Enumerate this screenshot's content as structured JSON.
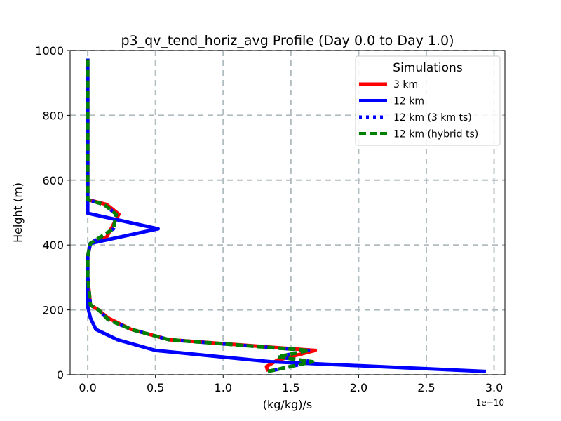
{
  "chart_data": {
    "type": "line",
    "title": "p3_qv_tend_horiz_avg Profile (Day 0.0 to Day 1.0)",
    "xlabel": "(kg/kg)/s",
    "ylabel": "Height (m)",
    "x_offset_text": "1e−10",
    "x_scale": 1e-10,
    "xlim": [
      -0.13,
      3.08
    ],
    "ylim": [
      0,
      1000
    ],
    "xticks": [
      0.0,
      0.5,
      1.0,
      1.5,
      2.0,
      2.5,
      3.0
    ],
    "xtick_labels": [
      "0.0",
      "0.5",
      "1.0",
      "1.5",
      "2.0",
      "2.5",
      "3.0"
    ],
    "yticks": [
      0,
      200,
      400,
      600,
      800,
      1000
    ],
    "ytick_labels": [
      "0",
      "200",
      "400",
      "600",
      "800",
      "1000"
    ],
    "grid": true,
    "legend": {
      "title": "Simulations",
      "placement": "upper-right",
      "entries": [
        "3 km",
        "12 km",
        "12 km (3 km ts)",
        "12 km (hybrid ts)"
      ]
    },
    "series": [
      {
        "name": "3 km",
        "color": "#ff0000",
        "style": "solid",
        "x": [
          1.33,
          1.32,
          1.4,
          1.68,
          0.6,
          0.32,
          0.15,
          0.08,
          0.02,
          0.0,
          0.0,
          0.02,
          0.14,
          0.23,
          0.14,
          0.0,
          0.0,
          0.0,
          0.0,
          0.0,
          0.0,
          0.0
        ],
        "y": [
          10,
          25,
          45,
          75,
          108,
          140,
          175,
          200,
          215,
          300,
          365,
          405,
          425,
          495,
          525,
          540,
          600,
          700,
          800,
          900,
          950,
          975
        ]
      },
      {
        "name": "12 km",
        "color": "#0000ff",
        "style": "solid",
        "x": [
          2.94,
          1.35,
          0.5,
          0.22,
          0.06,
          0.02,
          0.0,
          0.0,
          0.02,
          0.52,
          0.0,
          0.0,
          0.0,
          0.0,
          0.0,
          0.0,
          0.0
        ],
        "y": [
          10,
          40,
          75,
          108,
          140,
          175,
          210,
          365,
          405,
          450,
          498,
          540,
          600,
          700,
          800,
          900,
          975
        ]
      },
      {
        "name": "12 km (3 km ts)",
        "color": "#0000ff",
        "style": "dotted",
        "x": [
          1.33,
          1.66,
          1.4,
          1.63,
          0.6,
          0.32,
          0.15,
          0.08,
          0.02,
          0.0,
          0.0,
          0.02,
          0.19,
          0.21,
          0.12,
          0.0,
          0.0,
          0.0,
          0.0,
          0.0,
          0.0,
          0.0
        ],
        "y": [
          10,
          40,
          55,
          75,
          108,
          140,
          170,
          200,
          215,
          300,
          365,
          405,
          450,
          495,
          525,
          540,
          600,
          700,
          800,
          900,
          950,
          975
        ]
      },
      {
        "name": "12 km (hybrid ts)",
        "color": "#008000",
        "style": "dashed",
        "x": [
          1.33,
          1.66,
          1.4,
          1.63,
          0.6,
          0.32,
          0.15,
          0.08,
          0.02,
          0.0,
          0.0,
          0.02,
          0.19,
          0.21,
          0.12,
          0.0,
          0.0,
          0.0,
          0.0,
          0.0,
          0.0,
          0.0
        ],
        "y": [
          10,
          40,
          55,
          75,
          108,
          140,
          170,
          200,
          215,
          300,
          365,
          405,
          450,
          495,
          525,
          540,
          600,
          700,
          800,
          900,
          950,
          975
        ]
      }
    ]
  }
}
